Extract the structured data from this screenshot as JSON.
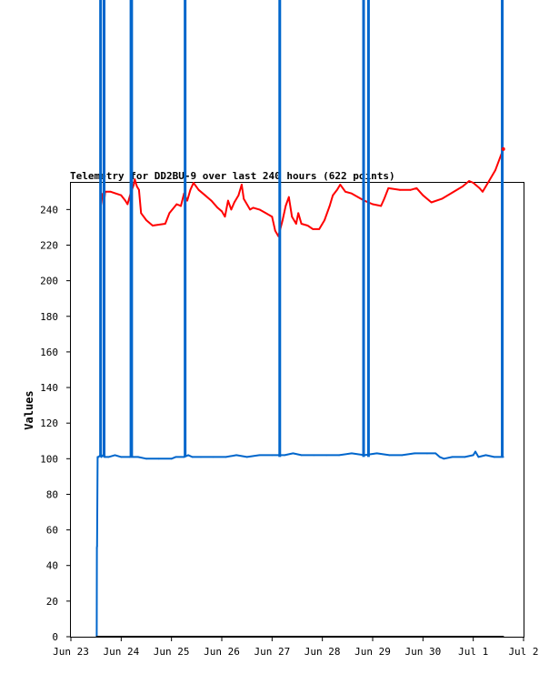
{
  "chart_data": {
    "type": "line",
    "title": "Telemetry for DD2BU-9 over last 240 hours (622 points)",
    "ylabel": "Values",
    "xlabel": "",
    "ylim": [
      0,
      255
    ],
    "yticks": [
      0,
      20,
      40,
      60,
      80,
      100,
      120,
      140,
      160,
      180,
      200,
      220,
      240
    ],
    "xlim": [
      "2025-06-23T00:00",
      "2025-07-02T00:00"
    ],
    "xticks": [
      {
        "t": "2025-06-23T00:00",
        "label": "Jun 23"
      },
      {
        "t": "2025-06-24T00:00",
        "label": "Jun 24"
      },
      {
        "t": "2025-06-25T00:00",
        "label": "Jun 25"
      },
      {
        "t": "2025-06-26T00:00",
        "label": "Jun 26"
      },
      {
        "t": "2025-06-27T00:00",
        "label": "Jun 27"
      },
      {
        "t": "2025-06-28T00:00",
        "label": "Jun 28"
      },
      {
        "t": "2025-06-29T00:00",
        "label": "Jun 29"
      },
      {
        "t": "2025-06-30T00:00",
        "label": "Jun 30"
      },
      {
        "t": "2025-07-01T00:00",
        "label": "Jul 1"
      },
      {
        "t": "2025-07-02T00:00",
        "label": "Jul 2"
      }
    ],
    "grid": false,
    "series": [
      {
        "color": "#ff0000",
        "points": [
          [
            "2025-06-23T14:10",
            247
          ],
          [
            "2025-06-23T14:40",
            249
          ],
          [
            "2025-06-23T15:10",
            246
          ],
          [
            "2025-06-23T15:40",
            242
          ],
          [
            "2025-06-23T16:20",
            250
          ],
          [
            "2025-06-23T19:00",
            250
          ],
          [
            "2025-06-24T00:00",
            248
          ],
          [
            "2025-06-24T02:00",
            245
          ],
          [
            "2025-06-24T03:00",
            243
          ],
          [
            "2025-06-24T04:30",
            249
          ],
          [
            "2025-06-24T06:00",
            254
          ],
          [
            "2025-06-24T06:30",
            257
          ],
          [
            "2025-06-24T07:30",
            253
          ],
          [
            "2025-06-24T08:30",
            251
          ],
          [
            "2025-06-24T09:30",
            238
          ],
          [
            "2025-06-24T12:00",
            234
          ],
          [
            "2025-06-24T15:00",
            231
          ],
          [
            "2025-06-24T21:00",
            232
          ],
          [
            "2025-06-24T23:00",
            238
          ],
          [
            "2025-06-25T02:30",
            243
          ],
          [
            "2025-06-25T04:30",
            242
          ],
          [
            "2025-06-25T06:00",
            249
          ],
          [
            "2025-06-25T07:30",
            245
          ],
          [
            "2025-06-25T09:00",
            251
          ],
          [
            "2025-06-25T10:30",
            255
          ],
          [
            "2025-06-25T13:00",
            251
          ],
          [
            "2025-06-25T16:00",
            248
          ],
          [
            "2025-06-25T19:00",
            245
          ],
          [
            "2025-06-25T22:00",
            241
          ],
          [
            "2025-06-26T00:00",
            239
          ],
          [
            "2025-06-26T01:30",
            236
          ],
          [
            "2025-06-26T03:00",
            245
          ],
          [
            "2025-06-26T04:30",
            240
          ],
          [
            "2025-06-26T06:00",
            244
          ],
          [
            "2025-06-26T08:00",
            248
          ],
          [
            "2025-06-26T09:30",
            254
          ],
          [
            "2025-06-26T10:30",
            246
          ],
          [
            "2025-06-26T13:30",
            240
          ],
          [
            "2025-06-26T15:00",
            241
          ],
          [
            "2025-06-26T18:00",
            240
          ],
          [
            "2025-06-26T21:00",
            238
          ],
          [
            "2025-06-27T00:00",
            236
          ],
          [
            "2025-06-27T01:30",
            228
          ],
          [
            "2025-06-27T03:00",
            225
          ],
          [
            "2025-06-27T05:00",
            234
          ],
          [
            "2025-06-27T06:30",
            242
          ],
          [
            "2025-06-27T08:00",
            247
          ],
          [
            "2025-06-27T09:30",
            236
          ],
          [
            "2025-06-27T11:30",
            232
          ],
          [
            "2025-06-27T12:30",
            238
          ],
          [
            "2025-06-27T14:00",
            232
          ],
          [
            "2025-06-27T17:00",
            231
          ],
          [
            "2025-06-27T19:30",
            229
          ],
          [
            "2025-06-27T22:30",
            229
          ],
          [
            "2025-06-28T01:00",
            234
          ],
          [
            "2025-06-28T03:30",
            242
          ],
          [
            "2025-06-28T05:00",
            248
          ],
          [
            "2025-06-28T07:00",
            251
          ],
          [
            "2025-06-28T08:30",
            254
          ],
          [
            "2025-06-28T11:00",
            250
          ],
          [
            "2025-06-28T14:00",
            249
          ],
          [
            "2025-06-28T17:00",
            247
          ],
          [
            "2025-06-28T20:00",
            245
          ],
          [
            "2025-06-29T00:00",
            243
          ],
          [
            "2025-06-29T04:00",
            242
          ],
          [
            "2025-06-29T05:30",
            246
          ],
          [
            "2025-06-29T07:30",
            252
          ],
          [
            "2025-06-29T13:00",
            251
          ],
          [
            "2025-06-29T18:00",
            251
          ],
          [
            "2025-06-29T21:00",
            252
          ],
          [
            "2025-06-30T00:00",
            248
          ],
          [
            "2025-06-30T04:00",
            244
          ],
          [
            "2025-06-30T09:00",
            246
          ],
          [
            "2025-06-30T19:00",
            253
          ],
          [
            "2025-06-30T22:00",
            256
          ],
          [
            "2025-07-01T00:00",
            255
          ],
          [
            "2025-07-01T03:00",
            252
          ],
          [
            "2025-07-01T04:30",
            250
          ],
          [
            "2025-07-01T07:30",
            256
          ],
          [
            "2025-07-01T10:30",
            262
          ],
          [
            "2025-07-01T14:20",
            274
          ]
        ]
      },
      {
        "color": "#0066cc",
        "points": [
          [
            "2025-06-23T12:20",
            0
          ],
          [
            "2025-06-23T12:25",
            50
          ],
          [
            "2025-06-23T12:30",
            51
          ],
          [
            "2025-06-23T12:45",
            101
          ],
          [
            "2025-06-23T13:10",
            101
          ],
          [
            "2025-06-23T14:00",
            102
          ],
          [
            "2025-06-23T14:30",
            101
          ],
          [
            "2025-06-23T15:20",
            102
          ],
          [
            "2025-06-23T16:00",
            101
          ],
          [
            "2025-06-23T18:00",
            101
          ],
          [
            "2025-06-23T21:00",
            102
          ],
          [
            "2025-06-24T00:00",
            101
          ],
          [
            "2025-06-24T04:00",
            101
          ],
          [
            "2025-06-24T06:00",
            101
          ],
          [
            "2025-06-24T08:00",
            101
          ],
          [
            "2025-06-24T12:00",
            100
          ],
          [
            "2025-06-24T18:00",
            100
          ],
          [
            "2025-06-25T00:00",
            100
          ],
          [
            "2025-06-25T02:00",
            101
          ],
          [
            "2025-06-25T06:00",
            101
          ],
          [
            "2025-06-25T08:00",
            102
          ],
          [
            "2025-06-25T10:00",
            101
          ],
          [
            "2025-06-25T14:00",
            101
          ],
          [
            "2025-06-25T20:00",
            101
          ],
          [
            "2025-06-26T02:00",
            101
          ],
          [
            "2025-06-26T07:00",
            102
          ],
          [
            "2025-06-26T12:00",
            101
          ],
          [
            "2025-06-26T18:00",
            102
          ],
          [
            "2025-06-27T00:00",
            102
          ],
          [
            "2025-06-27T06:00",
            102
          ],
          [
            "2025-06-27T10:00",
            103
          ],
          [
            "2025-06-27T14:00",
            102
          ],
          [
            "2025-06-27T20:00",
            102
          ],
          [
            "2025-06-28T02:00",
            102
          ],
          [
            "2025-06-28T08:00",
            102
          ],
          [
            "2025-06-28T14:00",
            103
          ],
          [
            "2025-06-28T20:00",
            102
          ],
          [
            "2025-06-29T02:00",
            103
          ],
          [
            "2025-06-29T08:00",
            102
          ],
          [
            "2025-06-29T14:00",
            102
          ],
          [
            "2025-06-29T20:00",
            103
          ],
          [
            "2025-06-30T02:00",
            103
          ],
          [
            "2025-06-30T06:00",
            103
          ],
          [
            "2025-06-30T08:00",
            101
          ],
          [
            "2025-06-30T10:00",
            100
          ],
          [
            "2025-06-30T14:00",
            101
          ],
          [
            "2025-06-30T20:00",
            101
          ],
          [
            "2025-07-01T00:00",
            102
          ],
          [
            "2025-07-01T01:00",
            104
          ],
          [
            "2025-07-01T02:30",
            101
          ],
          [
            "2025-07-01T06:00",
            102
          ],
          [
            "2025-07-01T10:00",
            101
          ],
          [
            "2025-07-01T14:20",
            101
          ]
        ],
        "spikes": [
          [
            "2025-06-23T14:10",
            101
          ],
          [
            "2025-06-23T15:50",
            101
          ],
          [
            "2025-06-24T04:40",
            101
          ],
          [
            "2025-06-24T05:00",
            101
          ],
          [
            "2025-06-25T06:30",
            101
          ],
          [
            "2025-06-27T03:40",
            101
          ],
          [
            "2025-06-28T19:40",
            101
          ],
          [
            "2025-06-28T22:00",
            101
          ],
          [
            "2025-07-01T13:50",
            101
          ]
        ]
      },
      {
        "color": "#000000",
        "points": [
          [
            "2025-06-23T12:20",
            0
          ],
          [
            "2025-07-01T14:20",
            0
          ]
        ]
      }
    ]
  }
}
